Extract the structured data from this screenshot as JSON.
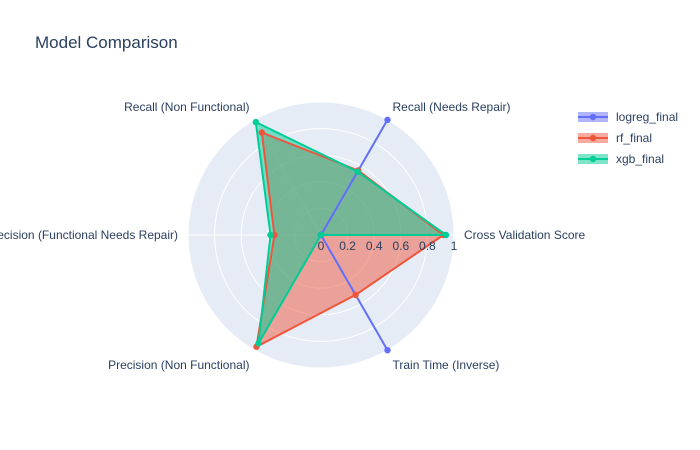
{
  "chart_data": {
    "type": "radar",
    "title": "Model Comparison",
    "axes": [
      "Cross Validation Score",
      "Recall (Needs Repair)",
      "Recall (Non Functional)",
      "Precision (Functional Needs Repair)",
      "Precision (Non Functional)",
      "Train Time (Inverse)"
    ],
    "radial_range": [
      0,
      1
    ],
    "radial_ticks": [
      0,
      0.2,
      0.4,
      0.6,
      0.8,
      1
    ],
    "radial_tick_labels": [
      "0",
      "0.2",
      "0.4",
      "0.6",
      "0.8",
      "1"
    ],
    "series": [
      {
        "name": "logreg_final",
        "color": "#636efa",
        "values": [
          0.0,
          1.0,
          0.0,
          0.0,
          0.0,
          1.0
        ]
      },
      {
        "name": "rf_final",
        "color": "#ef553b",
        "values": [
          0.92,
          0.56,
          0.89,
          0.35,
          0.97,
          0.52
        ]
      },
      {
        "name": "xgb_final",
        "color": "#00cc96",
        "values": [
          0.94,
          0.55,
          0.98,
          0.38,
          0.94,
          0.0
        ]
      }
    ],
    "legend_position": "top-right"
  }
}
